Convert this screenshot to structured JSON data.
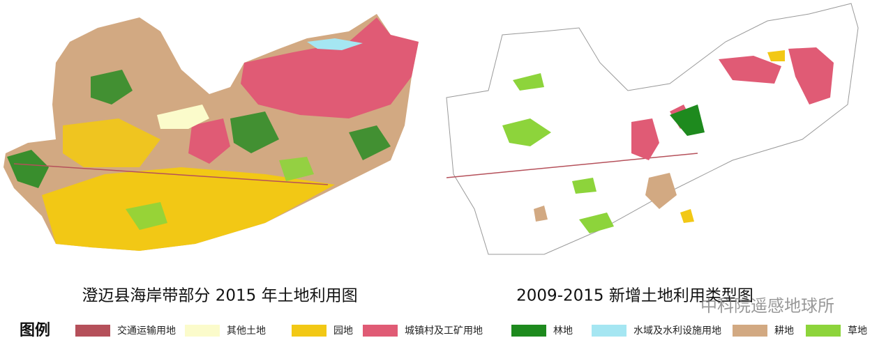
{
  "maps": [
    {
      "caption": "澄迈县海岸带部分 2015 年土地利用图"
    },
    {
      "caption": "2009-2015 新增土地利用类型图"
    }
  ],
  "legend": {
    "title": "图例",
    "items": [
      {
        "label": "交通运输用地",
        "color": "#b5505a"
      },
      {
        "label": "其他土地",
        "color": "#fbfbcb"
      },
      {
        "label": "园地",
        "color": "#f2c815"
      },
      {
        "label": "城镇村及工矿用地",
        "color": "#e05b75"
      },
      {
        "label": "林地",
        "color": "#1e8a1e"
      },
      {
        "label": "水域及水利设施用地",
        "color": "#a5e6f2"
      },
      {
        "label": "耕地",
        "color": "#d2a982"
      },
      {
        "label": "草地",
        "color": "#8dd43b"
      }
    ]
  },
  "watermark": "中科院遥感地球所"
}
